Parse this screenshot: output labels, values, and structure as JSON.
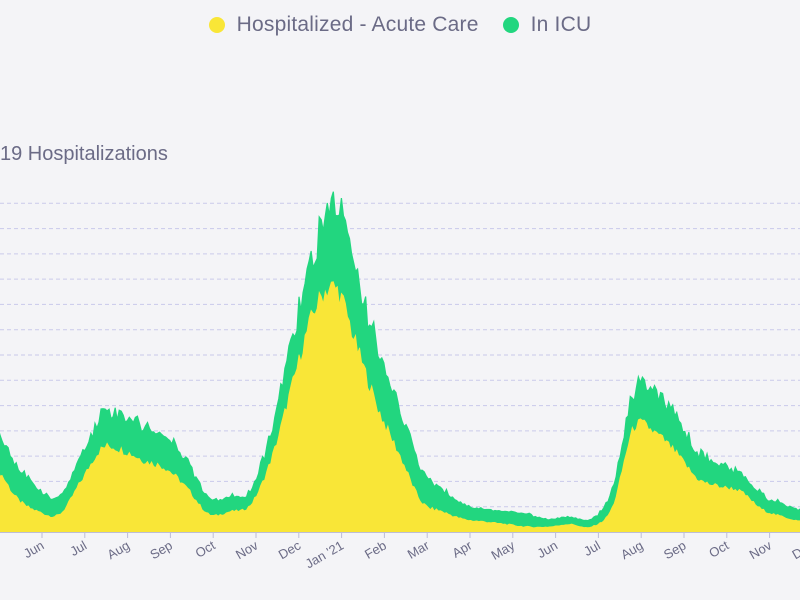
{
  "legend": {
    "items": [
      {
        "label": "Hospitalized - Acute Care",
        "color": "#f9e637",
        "icon": "circle-dot-icon"
      },
      {
        "label": "In ICU",
        "color": "#22d67f",
        "icon": "circle-dot-icon"
      }
    ]
  },
  "chart_data": {
    "type": "area",
    "title": "19 Hospitalizations",
    "stacked": true,
    "grid": true,
    "legend_position": "top-center",
    "categories": [
      "Jun",
      "Jul",
      "Aug",
      "Sep",
      "Oct",
      "Nov",
      "Dec",
      "Jan '21",
      "Feb",
      "Mar",
      "Apr",
      "May",
      "Jun",
      "Jul",
      "Aug",
      "Sep",
      "Oct",
      "Nov",
      "Dec"
    ],
    "x": [
      "May 2020",
      "May 2020",
      "Jun 2020",
      "Jun 2020",
      "Jul 2020",
      "Jul 2020",
      "Aug 2020",
      "Aug 2020",
      "Sep 2020",
      "Sep 2020",
      "Oct 2020",
      "Oct 2020",
      "Nov 2020",
      "Nov 2020",
      "Dec 2020",
      "Dec 2020",
      "Jan 2021",
      "Jan 2021",
      "Feb 2021",
      "Feb 2021",
      "Mar 2021",
      "Mar 2021",
      "Apr 2021",
      "Apr 2021",
      "May 2021",
      "May 2021",
      "Jun 2021",
      "Jun 2021",
      "Jul 2021",
      "Jul 2021",
      "Aug 2021",
      "Aug 2021",
      "Sep 2021",
      "Sep 2021",
      "Oct 2021",
      "Oct 2021",
      "Nov 2021",
      "Nov 2021",
      "Dec 2021"
    ],
    "ylim": [
      0,
      14
    ],
    "series": [
      {
        "name": "Hospitalized - Acute Care",
        "color": "#f9e637",
        "values": [
          2.5,
          1.3,
          0.8,
          0.7,
          2.0,
          3.3,
          3.2,
          2.8,
          2.5,
          1.7,
          0.7,
          0.8,
          1.1,
          3.0,
          6.0,
          8.8,
          9.6,
          7.2,
          4.8,
          3.0,
          1.2,
          0.8,
          0.5,
          0.4,
          0.3,
          0.2,
          0.2,
          0.3,
          0.2,
          1.0,
          4.1,
          3.9,
          3.1,
          2.1,
          1.8,
          1.6,
          0.9,
          0.6,
          0.4
        ]
      },
      {
        "name": "In ICU",
        "color": "#22d67f",
        "values": [
          1.6,
          1.3,
          0.9,
          0.7,
          1.0,
          1.4,
          1.5,
          1.4,
          1.3,
          1.1,
          0.7,
          0.6,
          0.6,
          1.1,
          1.8,
          2.3,
          3.3,
          2.8,
          2.4,
          1.9,
          1.3,
          0.9,
          0.6,
          0.5,
          0.5,
          0.5,
          0.3,
          0.3,
          0.3,
          0.7,
          1.4,
          1.5,
          1.3,
          1.1,
          0.9,
          0.7,
          0.6,
          0.5,
          0.4
        ]
      }
    ]
  }
}
